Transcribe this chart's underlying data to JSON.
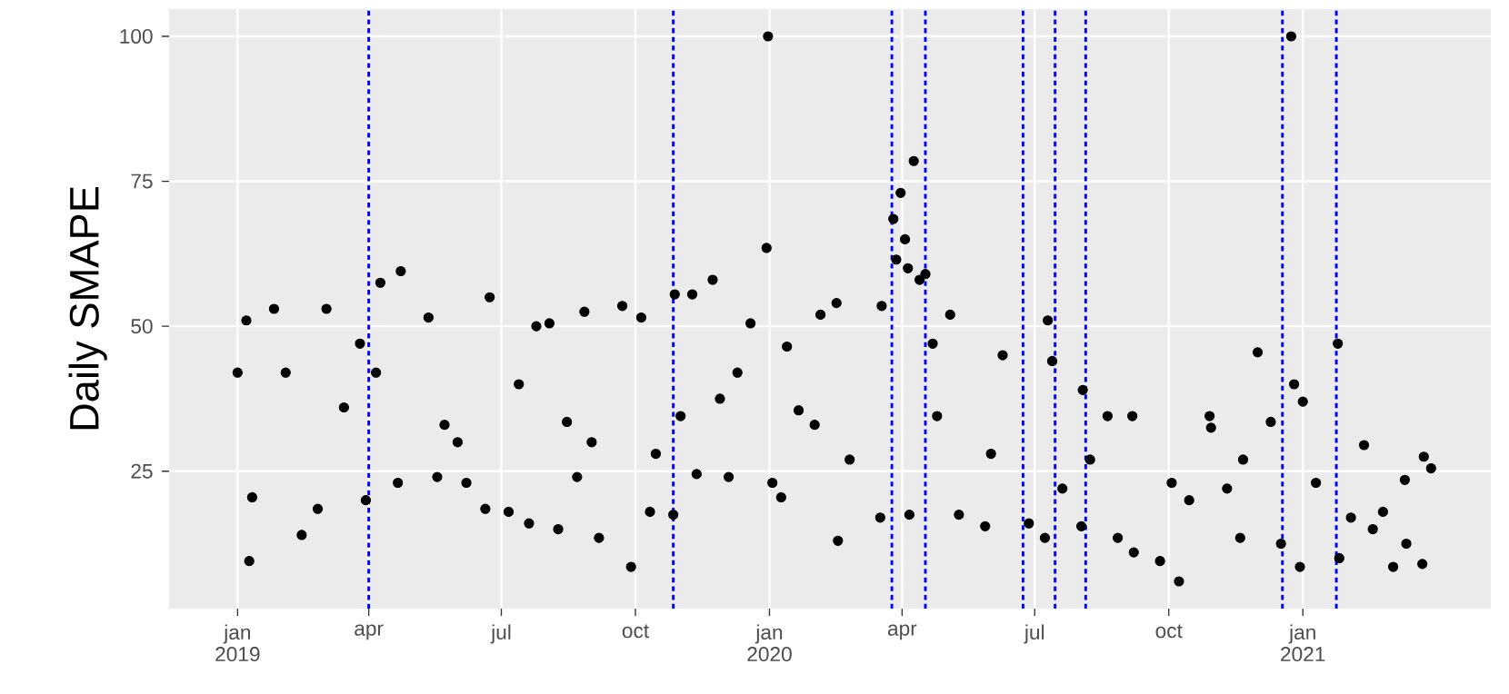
{
  "chart_data": {
    "type": "scatter",
    "ylabel": "Daily SMAPE",
    "color": "#000000",
    "marker": "circle",
    "grid": true,
    "xlim": [
      "2018-11-15",
      "2021-05-10"
    ],
    "ylim": [
      1.3,
      104.7
    ],
    "xticks": [
      {
        "value": "2019-01-01",
        "label": "jan 2019"
      },
      {
        "value": "2019-04-01",
        "label": "apr"
      },
      {
        "value": "2019-07-01",
        "label": "jul"
      },
      {
        "value": "2019-10-01",
        "label": "oct"
      },
      {
        "value": "2020-01-01",
        "label": "jan 2020"
      },
      {
        "value": "2020-04-01",
        "label": "apr"
      },
      {
        "value": "2020-07-01",
        "label": "jul"
      },
      {
        "value": "2020-10-01",
        "label": "oct"
      },
      {
        "value": "2021-01-01",
        "label": "jan 2021"
      }
    ],
    "yticks": [
      25,
      50,
      75,
      100
    ],
    "ref_lines": [
      {
        "axis": "x",
        "value": "2019-04-01",
        "color": "#0000ff",
        "line_style": "dotted"
      },
      {
        "axis": "x",
        "value": "2019-10-27",
        "color": "#0000ff",
        "line_style": "dotted"
      },
      {
        "axis": "x",
        "value": "2020-03-25",
        "color": "#0000ff",
        "line_style": "dotted"
      },
      {
        "axis": "x",
        "value": "2020-04-17",
        "color": "#0000ff",
        "line_style": "dotted"
      },
      {
        "axis": "x",
        "value": "2020-06-23",
        "color": "#0000ff",
        "line_style": "dotted"
      },
      {
        "axis": "x",
        "value": "2020-07-15",
        "color": "#0000ff",
        "line_style": "dotted"
      },
      {
        "axis": "x",
        "value": "2020-08-05",
        "color": "#0000ff",
        "line_style": "dotted"
      },
      {
        "axis": "x",
        "value": "2020-12-18",
        "color": "#0000ff",
        "line_style": "dotted"
      },
      {
        "axis": "x",
        "value": "2021-01-24",
        "color": "#0000ff",
        "line_style": "dotted"
      }
    ],
    "x": [
      "2019-01-01",
      "2019-01-07",
      "2019-01-09",
      "2019-01-11",
      "2019-01-26",
      "2019-02-14",
      "2019-03-03",
      "2019-02-25",
      "2019-03-26",
      "2019-03-30",
      "2019-02-03",
      "2019-03-15",
      "2019-04-09",
      "2019-04-23",
      "2019-04-21",
      "2019-05-12",
      "2019-05-18",
      "2019-04-06",
      "2019-06-23",
      "2019-06-20",
      "2019-06-07",
      "2019-05-23",
      "2019-06-01",
      "2019-07-06",
      "2019-07-20",
      "2019-07-25",
      "2019-08-09",
      "2019-08-03",
      "2019-08-27",
      "2019-09-06",
      "2019-09-22",
      "2019-09-28",
      "2019-08-22",
      "2019-07-13",
      "2019-08-15",
      "2019-09-01",
      "2019-10-11",
      "2019-10-05",
      "2019-10-28",
      "2019-10-27",
      "2019-11-09",
      "2019-11-12",
      "2019-11-23",
      "2019-12-04",
      "2019-12-19",
      "2019-12-31",
      "2019-12-30",
      "2019-11-28",
      "2020-01-03",
      "2019-11-01",
      "2019-10-15",
      "2019-12-10",
      "2020-01-09",
      "2020-02-17",
      "2020-02-16",
      "2020-02-05",
      "2020-03-17",
      "2020-03-18",
      "2020-01-21",
      "2020-02-25",
      "2020-01-13",
      "2020-02-01",
      "2020-03-26",
      "2020-03-31",
      "2020-04-09",
      "2020-04-03",
      "2020-03-28",
      "2020-04-05",
      "2020-04-13",
      "2020-04-17",
      "2020-04-06",
      "2020-05-04",
      "2020-04-22",
      "2020-05-28",
      "2020-06-09",
      "2020-05-10",
      "2020-04-25",
      "2020-06-01",
      "2020-07-10",
      "2020-07-08",
      "2020-06-27",
      "2020-07-13",
      "2020-08-03",
      "2020-08-02",
      "2020-08-20",
      "2020-09-06",
      "2020-08-27",
      "2020-09-07",
      "2020-09-25",
      "2020-08-08",
      "2020-07-20",
      "2020-10-08",
      "2020-10-03",
      "2020-10-29",
      "2020-10-30",
      "2020-11-19",
      "2020-12-01",
      "2020-12-10",
      "2020-11-21",
      "2020-12-17",
      "2020-12-24",
      "2020-12-26",
      "2021-01-01",
      "2020-10-15",
      "2020-11-10",
      "2020-12-30",
      "2021-01-25",
      "2021-01-26",
      "2021-02-12",
      "2021-03-04",
      "2021-03-12",
      "2021-03-25",
      "2021-03-30",
      "2021-03-24",
      "2021-02-18",
      "2021-02-03",
      "2021-03-13",
      "2021-01-10",
      "2021-02-25"
    ],
    "values": [
      42,
      51,
      9.5,
      20.5,
      53,
      14,
      53,
      18.5,
      47,
      20,
      42,
      36,
      57.5,
      59.5,
      23,
      51.5,
      24,
      42,
      55,
      18.5,
      23,
      33,
      30,
      18,
      16,
      50,
      15,
      50.5,
      52.5,
      13.5,
      53.5,
      8.5,
      24,
      40,
      33.5,
      30,
      18,
      51.5,
      55.5,
      17.5,
      55.5,
      24.5,
      58,
      24,
      50.5,
      100,
      63.5,
      37.5,
      23,
      34.5,
      28,
      42,
      20.5,
      13,
      54,
      52,
      17,
      53.5,
      35.5,
      27,
      46.5,
      33,
      68.5,
      73,
      78.5,
      65,
      61.5,
      60,
      58,
      59,
      17.5,
      52,
      47,
      15.5,
      45,
      17.5,
      34.5,
      28,
      51,
      13.5,
      16,
      44,
      39,
      15.5,
      34.5,
      34.5,
      13.5,
      11,
      9.5,
      27,
      22,
      6,
      23,
      34.5,
      32.5,
      13.5,
      45.5,
      33.5,
      27,
      12.5,
      100,
      40,
      37,
      20,
      22,
      8.5,
      47,
      10,
      29.5,
      8.5,
      23.5,
      27.5,
      25.5,
      9,
      15,
      17,
      12.5,
      23,
      18
    ]
  }
}
